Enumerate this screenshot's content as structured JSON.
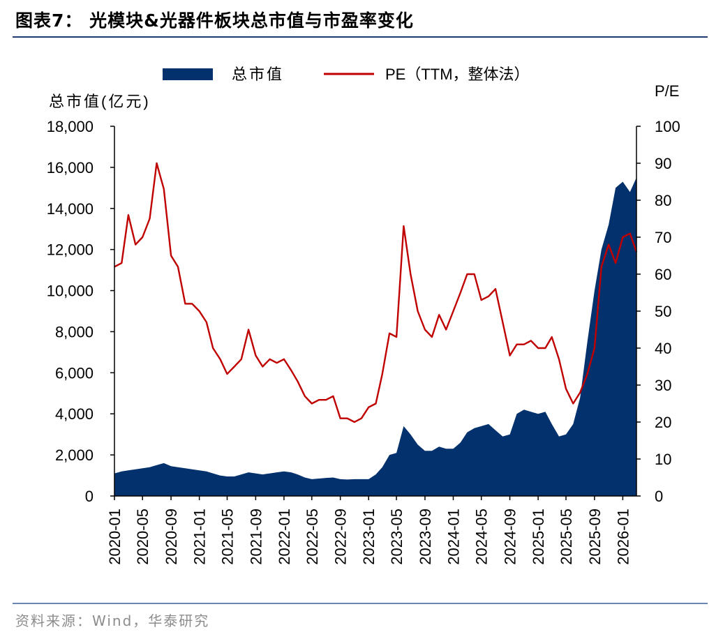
{
  "figure": {
    "title": "图表7：  光模块&光器件板块总市值与市盈率变化",
    "source": "资料来源：Wind，华泰研究"
  },
  "colors": {
    "market_cap": "#03316e",
    "pe": "#c00000",
    "title_rule": "#1f3a6e",
    "source_rule": "#6b86b4"
  },
  "chart_data": {
    "type": "area",
    "x_type": "date",
    "x_range": [
      "2020-01",
      "2026-03"
    ],
    "x_tick_labels": [
      "2020-01",
      "2020-05",
      "2020-09",
      "2021-01",
      "2021-05",
      "2021-09",
      "2022-01",
      "2022-05",
      "2022-09",
      "2023-01",
      "2023-05",
      "2023-09",
      "2024-01",
      "2024-05",
      "2024-09",
      "2025-01",
      "2025-05",
      "2025-09",
      "2026-01"
    ],
    "left_axis": {
      "label": "总市值(亿元)",
      "range": [
        0,
        18000
      ],
      "tick_labels": [
        "0",
        "2,000",
        "4,000",
        "6,000",
        "8,000",
        "10,000",
        "12,000",
        "14,000",
        "16,000",
        "18,000"
      ]
    },
    "right_axis": {
      "label": "P/E",
      "range": [
        0,
        100
      ],
      "tick_labels": [
        "0",
        "10",
        "20",
        "30",
        "40",
        "50",
        "60",
        "70",
        "80",
        "90",
        "100"
      ]
    },
    "legend_position": "top",
    "grid": false,
    "series": [
      {
        "name": "总市值",
        "type": "area",
        "axis": "left",
        "points": [
          [
            "2020-01-01",
            1100
          ],
          [
            "2020-02-01",
            1200
          ],
          [
            "2020-03-01",
            1250
          ],
          [
            "2020-04-01",
            1300
          ],
          [
            "2020-05-01",
            1350
          ],
          [
            "2020-06-01",
            1400
          ],
          [
            "2020-07-01",
            1500
          ],
          [
            "2020-08-01",
            1600
          ],
          [
            "2020-09-01",
            1450
          ],
          [
            "2020-10-01",
            1400
          ],
          [
            "2020-11-01",
            1350
          ],
          [
            "2020-12-01",
            1300
          ],
          [
            "2021-01-01",
            1250
          ],
          [
            "2021-02-01",
            1200
          ],
          [
            "2021-03-01",
            1100
          ],
          [
            "2021-04-01",
            1000
          ],
          [
            "2021-05-01",
            950
          ],
          [
            "2021-06-01",
            950
          ],
          [
            "2021-07-01",
            1050
          ],
          [
            "2021-08-01",
            1150
          ],
          [
            "2021-09-01",
            1100
          ],
          [
            "2021-10-01",
            1050
          ],
          [
            "2021-11-01",
            1100
          ],
          [
            "2021-12-01",
            1150
          ],
          [
            "2022-01-01",
            1200
          ],
          [
            "2022-02-01",
            1150
          ],
          [
            "2022-03-01",
            1050
          ],
          [
            "2022-04-01",
            900
          ],
          [
            "2022-05-01",
            820
          ],
          [
            "2022-06-01",
            850
          ],
          [
            "2022-07-01",
            880
          ],
          [
            "2022-08-01",
            900
          ],
          [
            "2022-09-01",
            820
          ],
          [
            "2022-10-01",
            800
          ],
          [
            "2022-11-01",
            820
          ],
          [
            "2022-12-01",
            820
          ],
          [
            "2023-01-01",
            820
          ],
          [
            "2023-02-01",
            1050
          ],
          [
            "2023-03-01",
            1400
          ],
          [
            "2023-04-01",
            2000
          ],
          [
            "2023-05-01",
            2100
          ],
          [
            "2023-06-01",
            3400
          ],
          [
            "2023-07-01",
            3000
          ],
          [
            "2023-08-01",
            2500
          ],
          [
            "2023-09-01",
            2200
          ],
          [
            "2023-10-01",
            2200
          ],
          [
            "2023-11-01",
            2400
          ],
          [
            "2023-12-01",
            2300
          ],
          [
            "2024-01-01",
            2300
          ],
          [
            "2024-02-01",
            2600
          ],
          [
            "2024-03-01",
            3100
          ],
          [
            "2024-04-01",
            3300
          ],
          [
            "2024-05-01",
            3400
          ],
          [
            "2024-06-01",
            3500
          ],
          [
            "2024-07-01",
            3200
          ],
          [
            "2024-08-01",
            2900
          ],
          [
            "2024-09-01",
            3000
          ],
          [
            "2024-10-01",
            4000
          ],
          [
            "2024-11-01",
            4200
          ],
          [
            "2024-12-01",
            4100
          ],
          [
            "2025-01-01",
            4000
          ],
          [
            "2025-02-01",
            4100
          ],
          [
            "2025-03-01",
            3500
          ],
          [
            "2025-04-01",
            2900
          ],
          [
            "2025-05-01",
            3000
          ],
          [
            "2025-06-01",
            3500
          ],
          [
            "2025-07-01",
            4800
          ],
          [
            "2025-08-01",
            7500
          ],
          [
            "2025-09-01",
            10000
          ],
          [
            "2025-10-01",
            12000
          ],
          [
            "2025-11-01",
            13200
          ],
          [
            "2025-12-01",
            15000
          ],
          [
            "2026-01-01",
            15300
          ],
          [
            "2026-02-01",
            14800
          ],
          [
            "2026-03-01",
            15500
          ]
        ]
      },
      {
        "name": "PE（TTM，整体法）",
        "type": "line",
        "axis": "right",
        "points": [
          [
            "2020-01-01",
            62
          ],
          [
            "2020-02-01",
            63
          ],
          [
            "2020-03-01",
            76
          ],
          [
            "2020-04-01",
            68
          ],
          [
            "2020-05-01",
            70
          ],
          [
            "2020-06-01",
            75
          ],
          [
            "2020-07-01",
            90
          ],
          [
            "2020-08-01",
            83
          ],
          [
            "2020-09-01",
            65
          ],
          [
            "2020-10-01",
            62
          ],
          [
            "2020-11-01",
            52
          ],
          [
            "2020-12-01",
            52
          ],
          [
            "2021-01-01",
            50
          ],
          [
            "2021-02-01",
            47
          ],
          [
            "2021-03-01",
            40
          ],
          [
            "2021-04-01",
            37
          ],
          [
            "2021-05-01",
            33
          ],
          [
            "2021-06-01",
            35
          ],
          [
            "2021-07-01",
            37
          ],
          [
            "2021-08-01",
            45
          ],
          [
            "2021-09-01",
            38
          ],
          [
            "2021-10-01",
            35
          ],
          [
            "2021-11-01",
            37
          ],
          [
            "2021-12-01",
            36
          ],
          [
            "2022-01-01",
            37
          ],
          [
            "2022-02-01",
            34
          ],
          [
            "2022-03-01",
            31
          ],
          [
            "2022-04-01",
            27
          ],
          [
            "2022-05-01",
            25
          ],
          [
            "2022-06-01",
            26
          ],
          [
            "2022-07-01",
            26
          ],
          [
            "2022-08-01",
            27
          ],
          [
            "2022-09-01",
            21
          ],
          [
            "2022-10-01",
            21
          ],
          [
            "2022-11-01",
            20
          ],
          [
            "2022-12-01",
            21
          ],
          [
            "2023-01-01",
            24
          ],
          [
            "2023-02-01",
            25
          ],
          [
            "2023-03-01",
            33
          ],
          [
            "2023-04-01",
            44
          ],
          [
            "2023-05-01",
            43
          ],
          [
            "2023-06-01",
            73
          ],
          [
            "2023-07-01",
            60
          ],
          [
            "2023-08-01",
            50
          ],
          [
            "2023-09-01",
            45
          ],
          [
            "2023-10-01",
            43
          ],
          [
            "2023-11-01",
            49
          ],
          [
            "2023-12-01",
            45
          ],
          [
            "2024-01-01",
            50
          ],
          [
            "2024-02-01",
            55
          ],
          [
            "2024-03-01",
            60
          ],
          [
            "2024-04-01",
            60
          ],
          [
            "2024-05-01",
            53
          ],
          [
            "2024-06-01",
            54
          ],
          [
            "2024-07-01",
            56
          ],
          [
            "2024-08-01",
            47
          ],
          [
            "2024-09-01",
            38
          ],
          [
            "2024-10-01",
            41
          ],
          [
            "2024-11-01",
            41
          ],
          [
            "2024-12-01",
            42
          ],
          [
            "2025-01-01",
            40
          ],
          [
            "2025-02-01",
            40
          ],
          [
            "2025-03-01",
            43
          ],
          [
            "2025-04-01",
            37
          ],
          [
            "2025-05-01",
            29
          ],
          [
            "2025-06-01",
            25
          ],
          [
            "2025-07-01",
            28
          ],
          [
            "2025-08-01",
            33
          ],
          [
            "2025-09-01",
            40
          ],
          [
            "2025-10-01",
            62
          ],
          [
            "2025-11-01",
            68
          ],
          [
            "2025-12-01",
            63
          ],
          [
            "2026-01-01",
            70
          ],
          [
            "2026-02-01",
            71
          ],
          [
            "2026-03-01",
            66
          ]
        ]
      }
    ]
  }
}
